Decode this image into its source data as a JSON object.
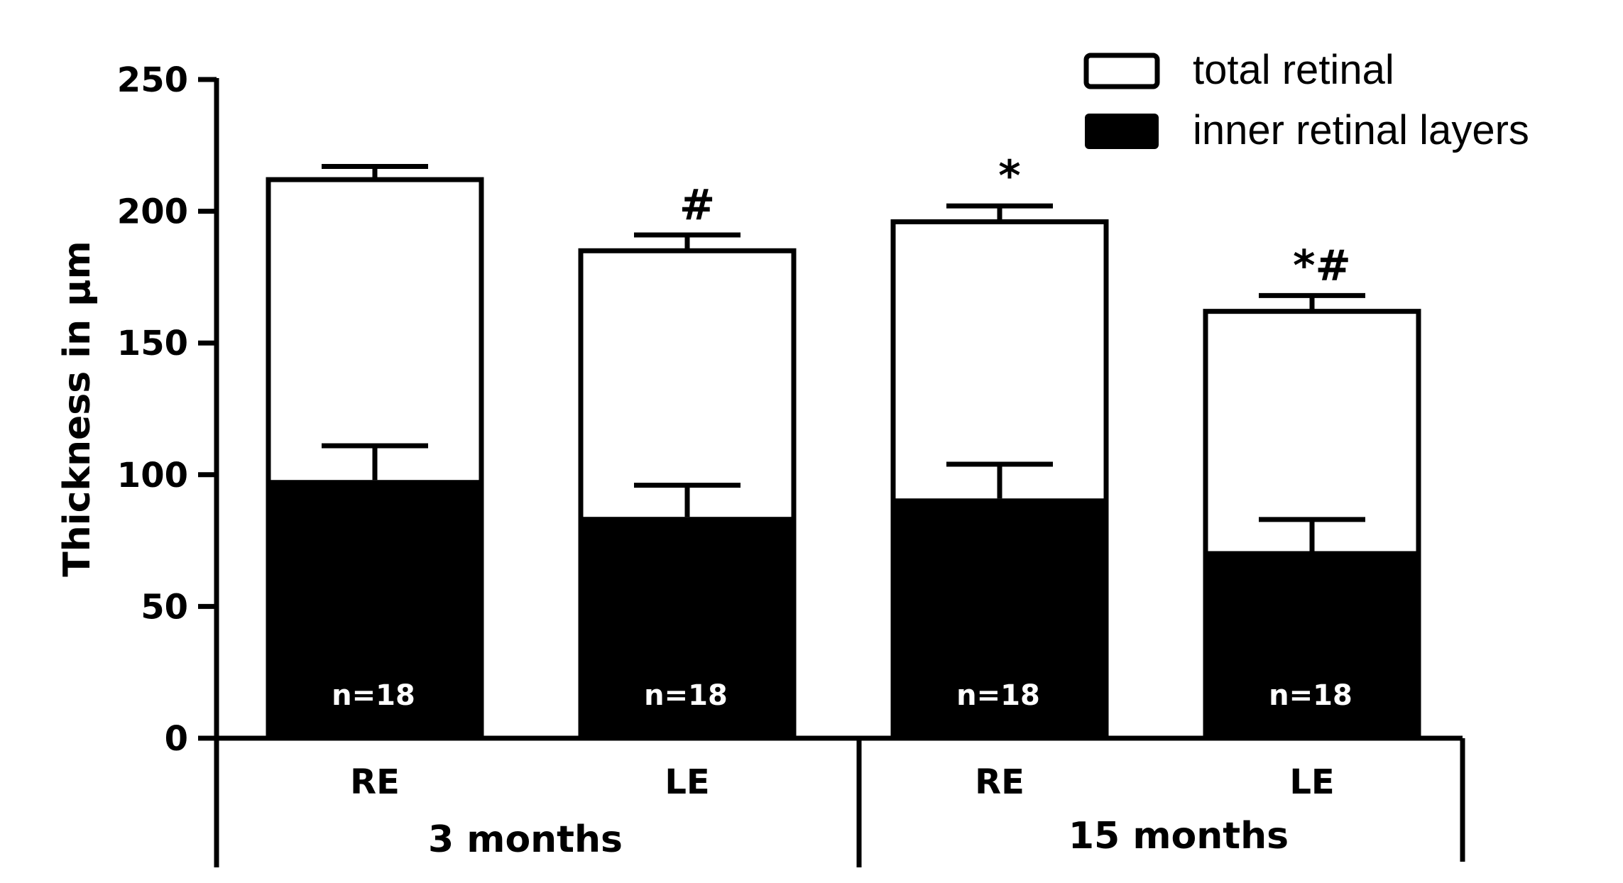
{
  "chart_data": {
    "type": "bar",
    "stacked_overlay": true,
    "ylabel": "Thickness in µm",
    "ylim": [
      0,
      250
    ],
    "yticks": [
      0,
      50,
      100,
      150,
      200,
      250
    ],
    "grid": false,
    "legend_position": "top-right",
    "groups": [
      {
        "label": "3 months",
        "categories": [
          "RE",
          "LE"
        ]
      },
      {
        "label": "15 months",
        "categories": [
          "RE",
          "LE"
        ]
      }
    ],
    "categories": [
      "RE",
      "LE",
      "RE",
      "LE"
    ],
    "series": [
      {
        "name": "total retinal",
        "fill": "#ffffff",
        "values": [
          212,
          185,
          196,
          162
        ],
        "error": [
          5,
          6,
          6,
          6
        ]
      },
      {
        "name": "inner retinal layers",
        "fill": "#000000",
        "values": [
          98,
          84,
          91,
          71
        ],
        "error": [
          13,
          12,
          13,
          12
        ]
      }
    ],
    "annotations": [
      "",
      "#",
      "*",
      "*#"
    ],
    "bar_notes": [
      "n=18",
      "n=18",
      "n=18",
      "n=18"
    ]
  }
}
